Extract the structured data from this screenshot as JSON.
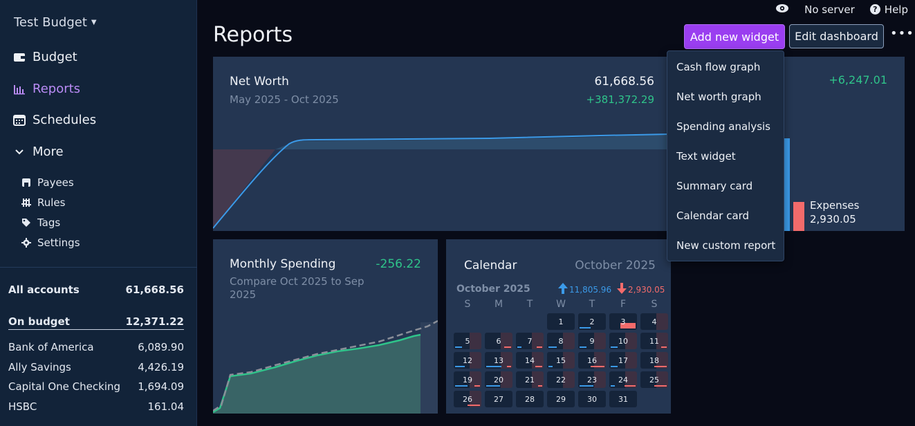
{
  "sidebar": {
    "budget_name": "Test Budget",
    "nav": [
      {
        "label": "Budget",
        "icon": "wallet-icon"
      },
      {
        "label": "Reports",
        "icon": "bar-chart-icon",
        "active": true
      },
      {
        "label": "Schedules",
        "icon": "calendar-icon"
      },
      {
        "label": "More",
        "icon": "chevron-down-icon"
      }
    ],
    "sub_nav": [
      {
        "label": "Payees",
        "icon": "store-icon"
      },
      {
        "label": "Rules",
        "icon": "sliders-icon"
      },
      {
        "label": "Tags",
        "icon": "tag-icon"
      },
      {
        "label": "Settings",
        "icon": "gear-icon"
      }
    ],
    "accounts_total": {
      "label": "All accounts",
      "amount": "61,668.56"
    },
    "on_budget": {
      "label": "On budget",
      "amount": "12,371.22"
    },
    "accounts": [
      {
        "name": "Bank of America",
        "amount": "6,089.90"
      },
      {
        "name": "Ally Savings",
        "amount": "4,426.19"
      },
      {
        "name": "Capital One Checking",
        "amount": "1,694.09"
      },
      {
        "name": "HSBC",
        "amount": "161.04"
      }
    ]
  },
  "topbar": {
    "server": "No server",
    "help": "Help"
  },
  "page": {
    "title": "Reports",
    "add_widget": "Add new widget",
    "edit_dashboard": "Edit dashboard",
    "more": "•••"
  },
  "menu": {
    "items": [
      "Cash flow graph",
      "Net worth graph",
      "Spending analysis",
      "Text widget",
      "Summary card",
      "Calendar card",
      "New custom report"
    ]
  },
  "net_worth": {
    "title": "Net Worth",
    "range": "May 2025 - Oct 2025",
    "amount": "61,668.56",
    "change": "+381,372.29"
  },
  "cash_flow": {
    "change": "+6,247.01",
    "expenses_label": "Expenses",
    "expenses_amount": "2,930.05"
  },
  "monthly_spending": {
    "title": "Monthly Spending",
    "subtitle": "Compare Oct 2025 to Sep 2025",
    "amount": "-256.22"
  },
  "calendar": {
    "title": "Calendar",
    "month": "October 2025",
    "month_label": "October 2025",
    "income": "11,805.96",
    "expense": "2,930.05",
    "dow": [
      "S",
      "M",
      "T",
      "W",
      "T",
      "F",
      "S"
    ],
    "days": [
      "1",
      "2",
      "3",
      "4",
      "5",
      "6",
      "7",
      "8",
      "9",
      "10",
      "11",
      "12",
      "13",
      "14",
      "15",
      "16",
      "17",
      "18",
      "19",
      "20",
      "21",
      "22",
      "23",
      "24",
      "25",
      "26",
      "27",
      "28",
      "29",
      "30",
      "31"
    ],
    "colors": {
      "income": "#3b9ae8",
      "expense": "#f36b6b"
    }
  },
  "colors": {
    "accent": "#9a3ef0",
    "positive": "#2fc48a",
    "negative": "#f36b6b",
    "line": "#3b9ae8"
  }
}
